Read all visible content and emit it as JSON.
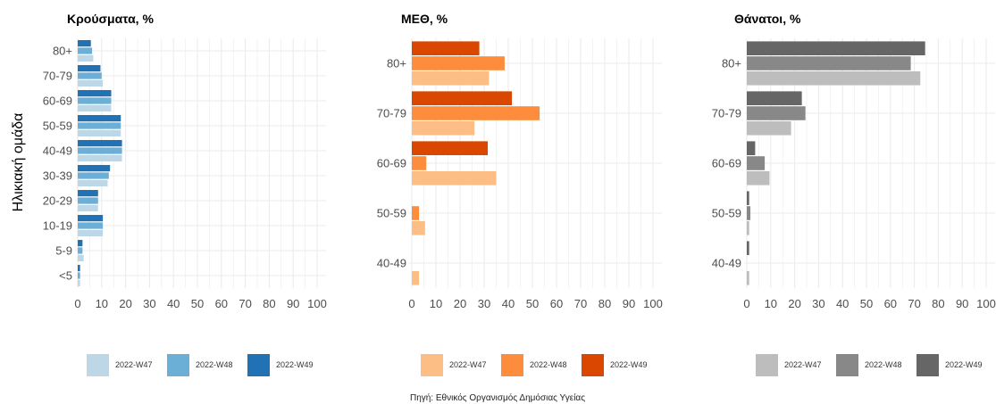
{
  "caption": "Πηγή: Εθνικός Οργανισμός Δημόσιας Υγείας",
  "y_axis_title": "Ηλικιακή ομάδα",
  "chart_data": [
    {
      "type": "bar",
      "orientation": "horizontal",
      "title": "Κρούσματα, %",
      "categories": [
        "<5",
        "5-9",
        "10-19",
        "20-29",
        "30-39",
        "40-49",
        "50-59",
        "60-69",
        "70-79",
        "80+"
      ],
      "series": [
        {
          "name": "2022-W47",
          "color": "#bdd7e7",
          "values": [
            1.0,
            2.5,
            10.5,
            8.5,
            12.5,
            18.5,
            18.0,
            14.0,
            10.5,
            6.5
          ]
        },
        {
          "name": "2022-W48",
          "color": "#6baed6",
          "values": [
            1.0,
            2.0,
            10.5,
            8.5,
            13.0,
            18.5,
            18.0,
            14.0,
            10.0,
            6.0
          ]
        },
        {
          "name": "2022-W49",
          "color": "#2171b5",
          "values": [
            1.0,
            2.0,
            10.5,
            8.5,
            13.5,
            18.5,
            18.0,
            14.0,
            9.5,
            5.5
          ]
        }
      ],
      "xlim": [
        0,
        100
      ],
      "xticks": [
        0,
        10,
        20,
        30,
        40,
        50,
        60,
        70,
        80,
        90,
        100
      ],
      "grid": true,
      "legend_position": "bottom"
    },
    {
      "type": "bar",
      "orientation": "horizontal",
      "title": "ΜΕΘ, %",
      "categories": [
        "40-49",
        "50-59",
        "60-69",
        "70-79",
        "80+"
      ],
      "series": [
        {
          "name": "2022-W47",
          "color": "#fdbe85",
          "values": [
            3.0,
            5.5,
            35.0,
            26.0,
            32.0
          ]
        },
        {
          "name": "2022-W48",
          "color": "#fd8d3c",
          "values": [
            0,
            3.0,
            6.0,
            53.0,
            38.5
          ]
        },
        {
          "name": "2022-W49",
          "color": "#d94701",
          "values": [
            0,
            0,
            31.5,
            41.5,
            28.0
          ]
        }
      ],
      "xlim": [
        0,
        100
      ],
      "xticks": [
        0,
        10,
        20,
        30,
        40,
        50,
        60,
        70,
        80,
        90,
        100
      ],
      "grid": true,
      "legend_position": "bottom"
    },
    {
      "type": "bar",
      "orientation": "horizontal",
      "title": "Θάνατοι, %",
      "categories": [
        "40-49",
        "50-59",
        "60-69",
        "70-79",
        "80+"
      ],
      "series": [
        {
          "name": "2022-W47",
          "color": "#bdbdbd",
          "values": [
            1.0,
            1.0,
            9.5,
            18.5,
            72.5
          ]
        },
        {
          "name": "2022-W48",
          "color": "#888888",
          "values": [
            0,
            1.5,
            7.5,
            24.5,
            68.5
          ]
        },
        {
          "name": "2022-W49",
          "color": "#666666",
          "values": [
            1.0,
            1.0,
            3.5,
            23.0,
            74.5
          ]
        }
      ],
      "xlim": [
        0,
        100
      ],
      "xticks": [
        0,
        10,
        20,
        30,
        40,
        50,
        60,
        70,
        80,
        90,
        100
      ],
      "grid": true,
      "legend_position": "bottom"
    }
  ]
}
